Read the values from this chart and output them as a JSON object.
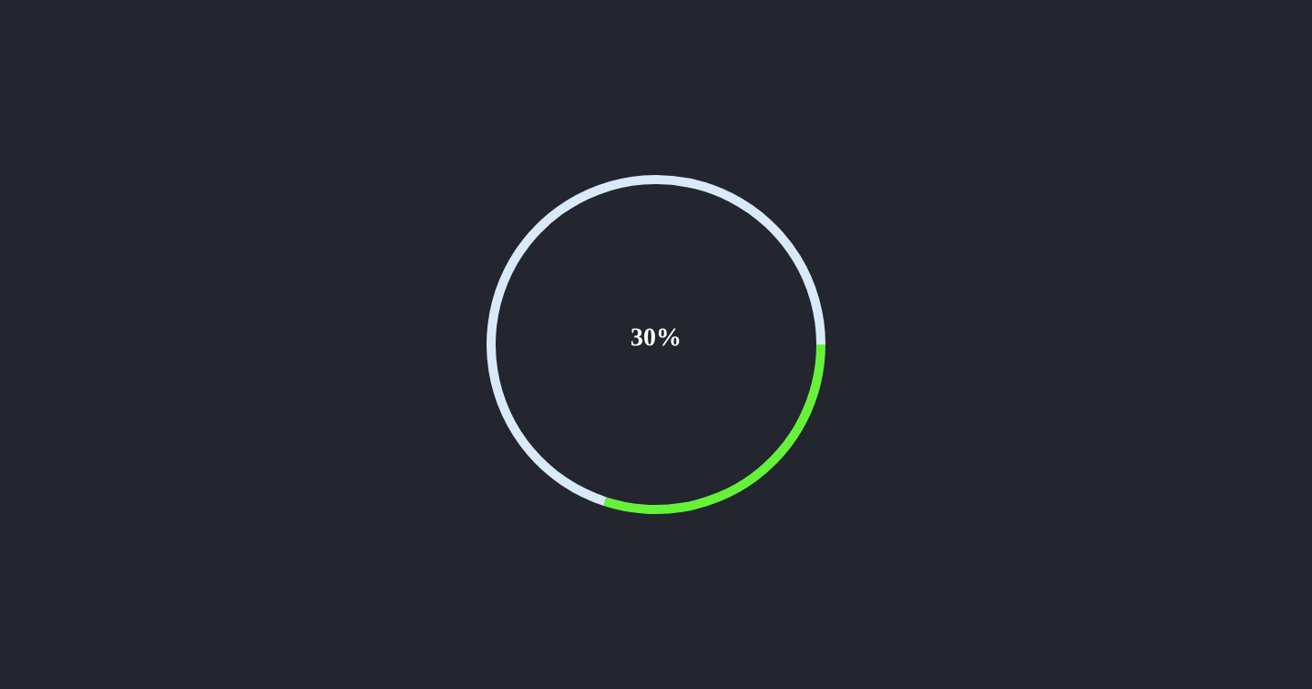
{
  "chart_data": {
    "type": "donut",
    "categories": [
      null,
      null
    ],
    "values": [
      30,
      70
    ],
    "colors": [
      "#66f23a",
      "#d8eaf8"
    ],
    "legend": false,
    "annotations": [
      "30%"
    ]
  }
}
